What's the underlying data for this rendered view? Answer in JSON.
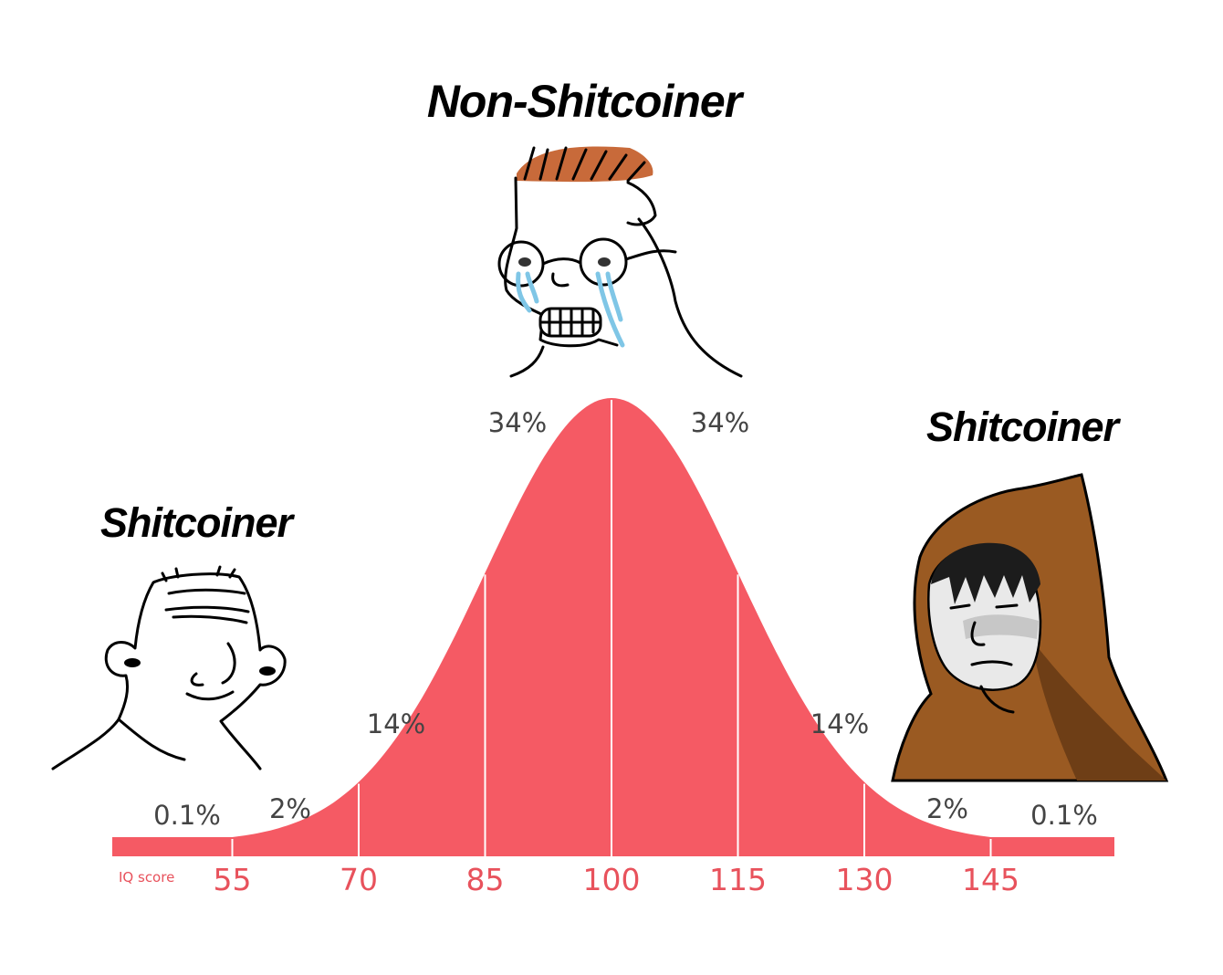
{
  "captions": {
    "left": "Shitcoiner",
    "center": "Non-Shitcoiner",
    "right": "Shitcoiner"
  },
  "chart_data": {
    "type": "area",
    "title": "",
    "xlabel": "IQ score",
    "ylabel": "",
    "x_ticks": [
      55,
      70,
      85,
      100,
      115,
      130,
      145
    ],
    "mean": 100,
    "sd": 15,
    "segments": [
      {
        "range": "<55",
        "label": "0.1%"
      },
      {
        "range": "55-70",
        "label": "2%"
      },
      {
        "range": "70-85",
        "label": "14%"
      },
      {
        "range": "85-100",
        "label": "34%"
      },
      {
        "range": "100-115",
        "label": "34%"
      },
      {
        "range": "115-130",
        "label": "14%"
      },
      {
        "range": "130-145",
        "label": "2%"
      },
      {
        "range": ">145",
        "label": "0.1%"
      }
    ],
    "colors": {
      "curve": "#f55a64",
      "tick_text": "#e8525c",
      "pct_text": "#444444"
    },
    "grid": false,
    "legend": "none"
  },
  "characters": [
    {
      "name": "wojak-left",
      "description": "bald smiling wojak"
    },
    {
      "name": "wojak-center",
      "description": "crying wojak with glasses and red hair"
    },
    {
      "name": "wojak-right",
      "description": "hooded monk wojak"
    }
  ]
}
